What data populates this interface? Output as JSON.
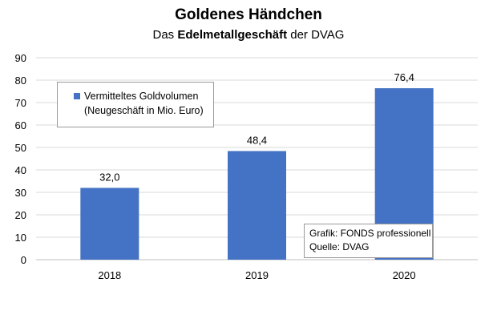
{
  "title": "Goldenes Händchen",
  "subtitle": {
    "prefix": "Das ",
    "bold": "Edelmetallgeschäft",
    "suffix": " der DVAG"
  },
  "legend": {
    "line1": "Vermitteltes Goldvolumen",
    "line2": "(Neugeschäft in Mio. Euro)"
  },
  "source": {
    "line1": "Grafik: FONDS professionell",
    "line2": "Quelle: DVAG"
  },
  "colors": {
    "bar": "#4472c4",
    "grid": "#d9d9d9"
  },
  "chart_data": {
    "type": "bar",
    "title": "Goldenes Händchen",
    "subtitle": "Das Edelmetallgeschäft der DVAG",
    "categories": [
      "2018",
      "2019",
      "2020"
    ],
    "series": [
      {
        "name": "Vermitteltes Goldvolumen (Neugeschäft in Mio. Euro)",
        "values": [
          32.0,
          48.4,
          76.4
        ]
      }
    ],
    "data_labels": [
      "32,0",
      "48,4",
      "76,4"
    ],
    "y_ticks": [
      "0",
      "10",
      "20",
      "30",
      "40",
      "50",
      "60",
      "70",
      "80",
      "90"
    ],
    "ylim": [
      0,
      90
    ],
    "xlabel": "",
    "ylabel": "",
    "grid": true,
    "legend_position": "top-left"
  }
}
